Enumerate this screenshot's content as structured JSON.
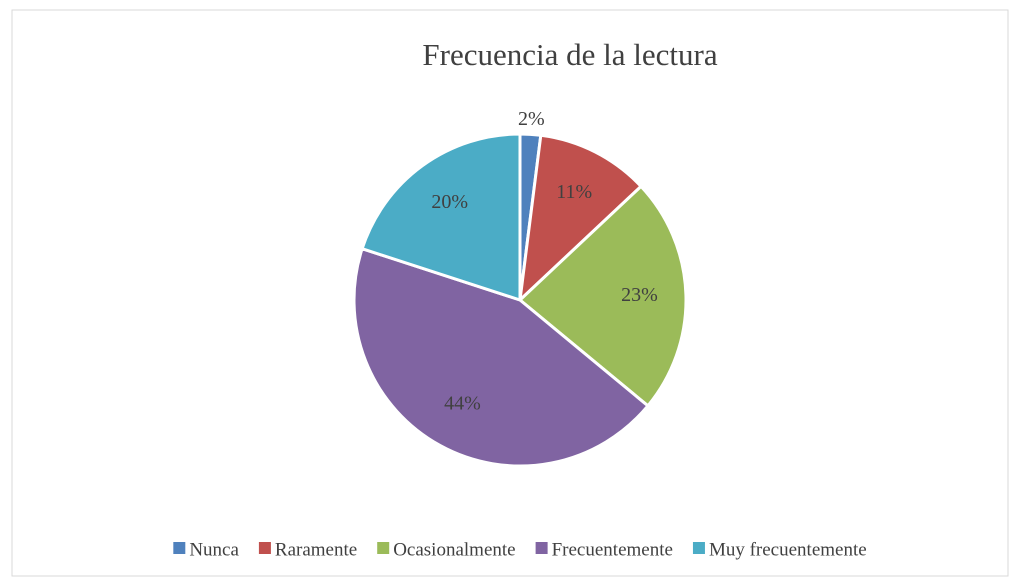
{
  "chart_data": {
    "type": "pie",
    "title": "Frecuencia de la lectura",
    "categories": [
      "Nunca",
      "Raramente",
      "Ocasionalmente",
      "Frecuentemente",
      "Muy frecuentemente"
    ],
    "values": [
      2,
      11,
      23,
      44,
      20
    ],
    "value_labels": [
      "2%",
      "11%",
      "23%",
      "44%",
      "20%"
    ],
    "colors": [
      "#4f81bd",
      "#c0504d",
      "#9bbb59",
      "#8064a2",
      "#4bacc6"
    ],
    "legend": "bottom"
  }
}
